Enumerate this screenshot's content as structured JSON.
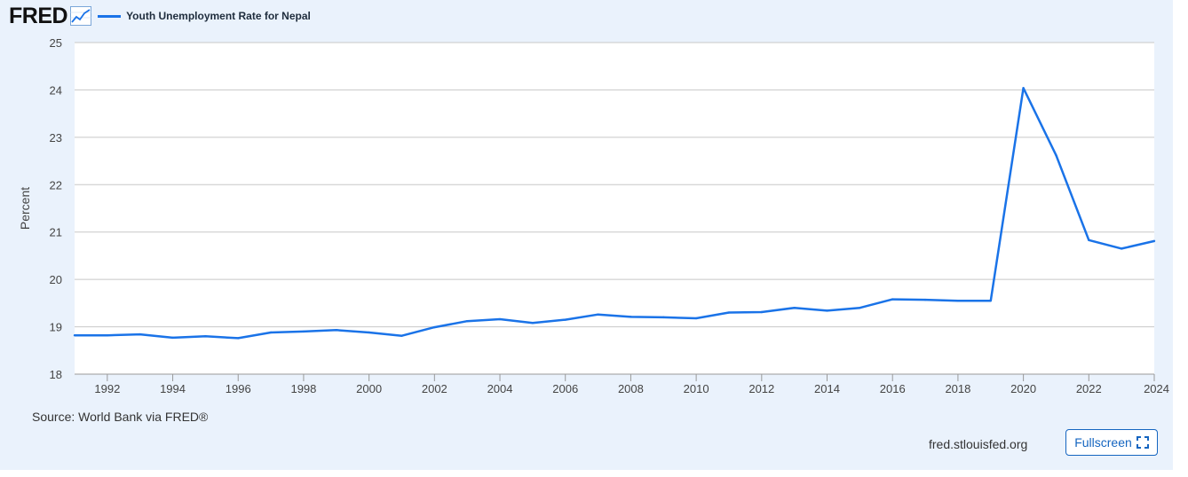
{
  "header": {
    "logo": "FRED",
    "logo_icon": "trend-line-icon",
    "legend_label": "Youth Unemployment Rate for Nepal"
  },
  "footer": {
    "source": "Source: World Bank via FRED®",
    "site": "fred.stlouisfed.org",
    "fullscreen_label": "Fullscreen",
    "fullscreen_icon": "expand-corners-icon"
  },
  "colors": {
    "series": "#1a73e8",
    "panel_background": "#eaf2fc",
    "plot_background": "#ffffff",
    "grid": "#c8c8c8"
  },
  "chart_data": {
    "type": "line",
    "title": "",
    "xlabel": "",
    "ylabel": "Percent",
    "xlim": [
      1991,
      2024
    ],
    "ylim": [
      18,
      25
    ],
    "yticks": [
      18,
      19,
      20,
      21,
      22,
      23,
      24,
      25
    ],
    "xticks": [
      1992,
      1994,
      1996,
      1998,
      2000,
      2002,
      2004,
      2006,
      2008,
      2010,
      2012,
      2014,
      2016,
      2018,
      2020,
      2022,
      2024
    ],
    "grid": true,
    "legend_position": "top-left",
    "series": [
      {
        "name": "Youth Unemployment Rate for Nepal",
        "x": [
          1991,
          1992,
          1993,
          1994,
          1995,
          1996,
          1997,
          1998,
          1999,
          2000,
          2001,
          2002,
          2003,
          2004,
          2005,
          2006,
          2007,
          2008,
          2009,
          2010,
          2011,
          2012,
          2013,
          2014,
          2015,
          2016,
          2017,
          2018,
          2019,
          2020,
          2021,
          2022,
          2023,
          2024
        ],
        "values": [
          18.82,
          18.82,
          18.84,
          18.77,
          18.8,
          18.76,
          18.88,
          18.9,
          18.93,
          18.88,
          18.81,
          18.99,
          19.12,
          19.16,
          19.08,
          19.15,
          19.26,
          19.21,
          19.2,
          19.18,
          19.3,
          19.31,
          19.4,
          19.34,
          19.4,
          19.58,
          19.57,
          19.55,
          19.55,
          24.04,
          22.62,
          20.83,
          20.65,
          20.81
        ]
      }
    ]
  }
}
